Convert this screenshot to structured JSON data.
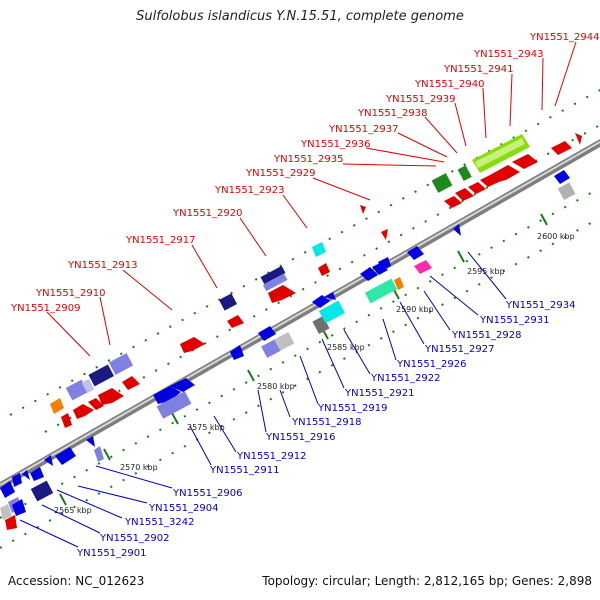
{
  "title": "Sulfolobus islandicus Y.N.15.51, complete genome",
  "footer": {
    "accession_label": "Accession:",
    "accession": "NC_012623",
    "topology_label": "Topology:",
    "topology": "circular",
    "length_label": "Length:",
    "length": "2,812,165 bp",
    "genes_label": "Genes:",
    "genes": "2,898"
  },
  "colors": {
    "forward_label": "#e00000",
    "reverse_label": "#0000c0",
    "backbone": "#9a9a9a",
    "tick": "#1a7a1a"
  },
  "scale_labels": [
    "2565 kbp",
    "2570 kbp",
    "2575 kbp",
    "2580 kbp",
    "2585 kbp",
    "2590 kbp",
    "2595 kbp",
    "2600 kbp"
  ],
  "forward_labels": [
    "YN1551_2909",
    "YN1551_2910",
    "YN1551_2913",
    "YN1551_2917",
    "YN1551_2920",
    "YN1551_2923",
    "YN1551_2929",
    "YN1551_2935",
    "YN1551_2936",
    "YN1551_2937",
    "YN1551_2938",
    "YN1551_2939",
    "YN1551_2940",
    "YN1551_2941",
    "YN1551_2943",
    "YN1551_2944"
  ],
  "reverse_labels": [
    "YN1551_2901",
    "YN1551_2902",
    "YN1551_3242",
    "YN1551_2904",
    "YN1551_2906",
    "YN1551_2911",
    "YN1551_2912",
    "YN1551_2916",
    "YN1551_2918",
    "YN1551_2919",
    "YN1551_2921",
    "YN1551_2922",
    "YN1551_2926",
    "YN1551_2927",
    "YN1551_2928",
    "YN1551_2931",
    "YN1551_2934"
  ]
}
